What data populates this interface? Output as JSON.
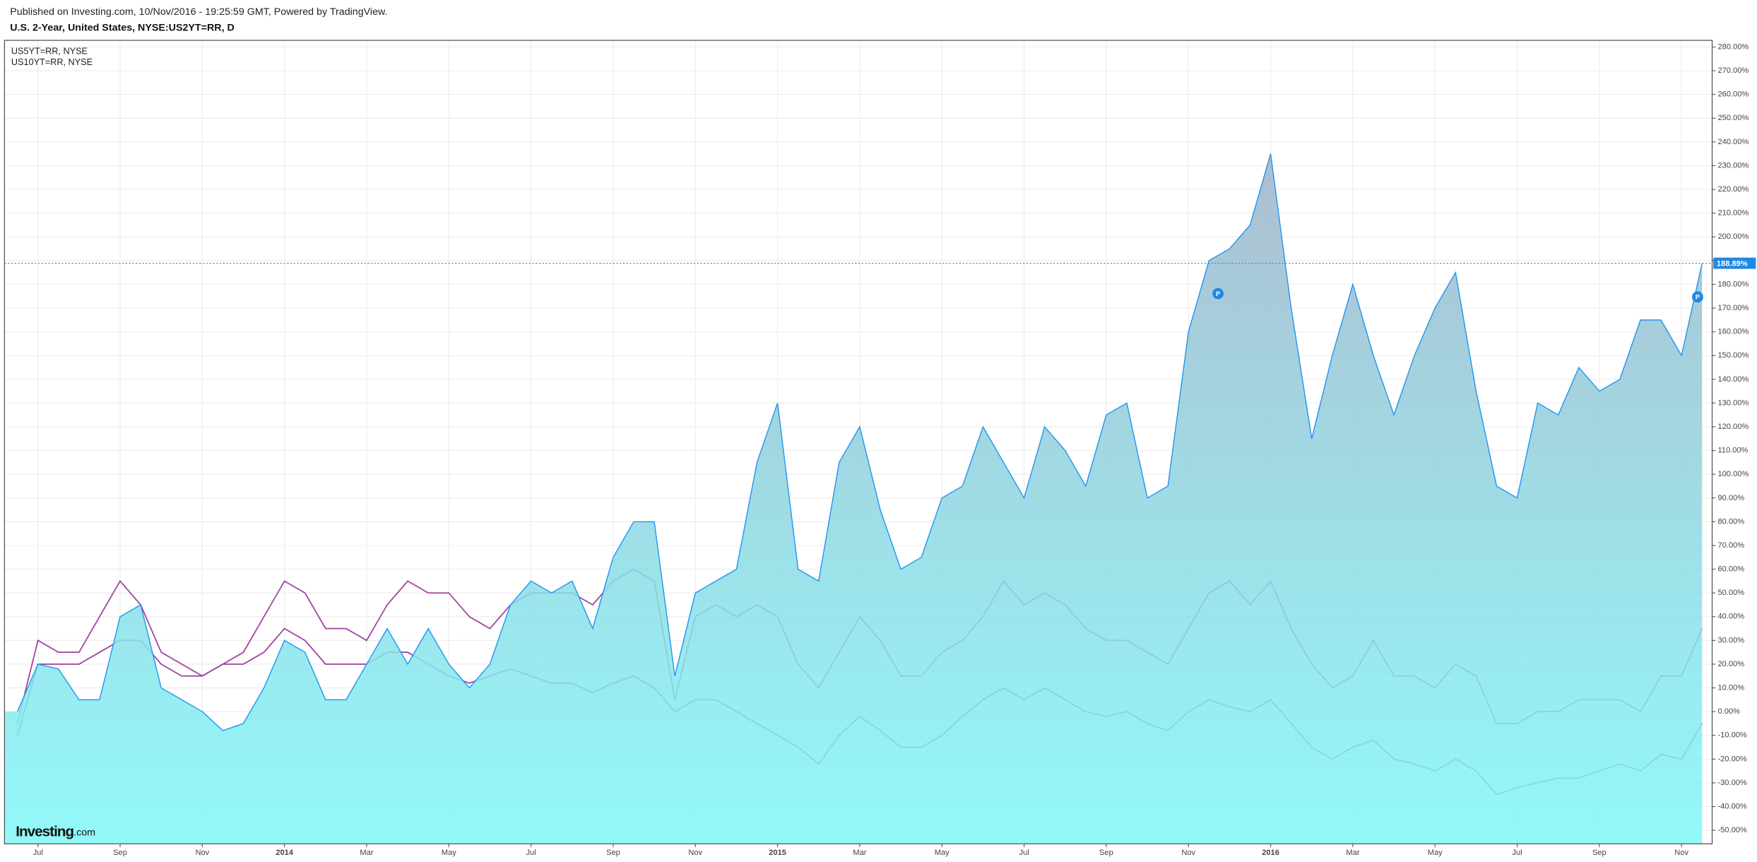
{
  "chart_data": {
    "type": "area",
    "source": "Published on Investing.com, 10/Nov/2016 - 19:25:59 GMT, Powered by TradingView.",
    "title": "U.S. 2-Year, United States, NYSE:US2YT=RR, D",
    "logo": {
      "name": "Investing",
      "suffix": ".com"
    },
    "categories": [
      null,
      "Jul",
      null,
      null,
      null,
      "Sep",
      null,
      null,
      null,
      "Nov",
      null,
      null,
      null,
      "2014",
      null,
      null,
      null,
      "Mar",
      null,
      null,
      null,
      "May",
      null,
      null,
      null,
      "Jul",
      null,
      null,
      null,
      "Sep",
      null,
      null,
      null,
      "Nov",
      null,
      null,
      null,
      "2015",
      null,
      null,
      null,
      "Mar",
      null,
      null,
      null,
      "May",
      null,
      null,
      null,
      "Jul",
      null,
      null,
      null,
      "Sep",
      null,
      null,
      null,
      "Nov",
      null,
      null,
      null,
      "2016",
      null,
      null,
      null,
      "Mar",
      null,
      null,
      null,
      "May",
      null,
      null,
      null,
      "Jul",
      null,
      null,
      null,
      "Sep",
      null,
      null,
      null,
      "Nov",
      null
    ],
    "series": [
      {
        "color": "#2196f3",
        "fill": [
          "#9fb3c9",
          "#7ff8f8"
        ],
        "last_label": "188.89%",
        "values": [
          0,
          20,
          18,
          5,
          5,
          40,
          45,
          10,
          5,
          0,
          -8,
          -5,
          10,
          30,
          25,
          5,
          5,
          20,
          35,
          20,
          35,
          20,
          10,
          20,
          45,
          55,
          50,
          55,
          35,
          65,
          80,
          80,
          15,
          50,
          55,
          60,
          105,
          130,
          60,
          55,
          105,
          120,
          85,
          60,
          65,
          90,
          95,
          120,
          105,
          90,
          120,
          110,
          95,
          125,
          130,
          90,
          95,
          160,
          190,
          195,
          205,
          235,
          170,
          115,
          150,
          180,
          150,
          125,
          150,
          170,
          185,
          135,
          95,
          90,
          130,
          125,
          145,
          135,
          140,
          165,
          165,
          150,
          188.89
        ]
      },
      {
        "name": "US5YT=RR, NYSE",
        "color": "#a0409f",
        "values": [
          -5,
          30,
          25,
          25,
          40,
          55,
          45,
          25,
          20,
          15,
          20,
          25,
          40,
          55,
          50,
          35,
          35,
          30,
          45,
          55,
          50,
          50,
          40,
          35,
          45,
          50,
          50,
          50,
          45,
          55,
          60,
          55,
          5,
          40,
          45,
          40,
          45,
          40,
          20,
          10,
          25,
          40,
          30,
          15,
          15,
          25,
          30,
          40,
          55,
          45,
          50,
          45,
          35,
          30,
          30,
          25,
          20,
          35,
          50,
          55,
          45,
          55,
          35,
          20,
          10,
          15,
          30,
          15,
          15,
          10,
          20,
          15,
          -5,
          -5,
          0,
          0,
          5,
          5,
          5,
          0,
          15,
          15,
          35
        ]
      },
      {
        "name": "US10YT=RR, NYSE",
        "color": "#9c3f9c",
        "values": [
          -10,
          20,
          20,
          20,
          25,
          30,
          30,
          20,
          15,
          15,
          20,
          20,
          25,
          35,
          30,
          20,
          20,
          20,
          25,
          25,
          20,
          15,
          12,
          15,
          18,
          15,
          12,
          12,
          8,
          12,
          15,
          10,
          0,
          5,
          5,
          0,
          -5,
          -10,
          -15,
          -22,
          -10,
          -2,
          -8,
          -15,
          -15,
          -10,
          -2,
          5,
          10,
          5,
          10,
          5,
          0,
          -2,
          0,
          -5,
          -8,
          0,
          5,
          2,
          0,
          5,
          -5,
          -15,
          -20,
          -15,
          -12,
          -20,
          -22,
          -25,
          -20,
          -25,
          -35,
          -32,
          -30,
          -28,
          -28,
          -25,
          -22,
          -25,
          -18,
          -20,
          -5
        ]
      }
    ],
    "ylim": [
      -55.7,
      282.8
    ],
    "yticks": [
      {
        "value": -50,
        "label": "-50.00%"
      },
      {
        "value": -40,
        "label": "-40.00%"
      },
      {
        "value": -30,
        "label": "-30.00%"
      },
      {
        "value": -20,
        "label": "-20.00%"
      },
      {
        "value": -10,
        "label": "-10.00%"
      },
      {
        "value": 0,
        "label": "0.00%"
      },
      {
        "value": 10,
        "label": "10.00%"
      },
      {
        "value": 20,
        "label": "20.00%"
      },
      {
        "value": 30,
        "label": "30.00%"
      },
      {
        "value": 40,
        "label": "40.00%"
      },
      {
        "value": 50,
        "label": "50.00%"
      },
      {
        "value": 60,
        "label": "60.00%"
      },
      {
        "value": 70,
        "label": "70.00%"
      },
      {
        "value": 80,
        "label": "80.00%"
      },
      {
        "value": 90,
        "label": "90.00%"
      },
      {
        "value": 100,
        "label": "100.00%"
      },
      {
        "value": 110,
        "label": "110.00%"
      },
      {
        "value": 120,
        "label": "120.00%"
      },
      {
        "value": 130,
        "label": "130.00%"
      },
      {
        "value": 140,
        "label": "140.00%"
      },
      {
        "value": 150,
        "label": "150.00%"
      },
      {
        "value": 160,
        "label": "160.00%"
      },
      {
        "value": 170,
        "label": "170.00%"
      },
      {
        "value": 180,
        "label": "180.00%"
      },
      {
        "value": 190,
        "label": "190.00%"
      },
      {
        "value": 200,
        "label": "200.00%"
      },
      {
        "value": 210,
        "label": "210.00%"
      },
      {
        "value": 220,
        "label": "220.00%"
      },
      {
        "value": 230,
        "label": "230.00%"
      },
      {
        "value": 240,
        "label": "240.00%"
      },
      {
        "value": 250,
        "label": "250.00%"
      },
      {
        "value": 260,
        "label": "260.00%"
      },
      {
        "value": 270,
        "label": "270.00%"
      },
      {
        "value": 280,
        "label": "280.00%"
      }
    ],
    "grid": true
  }
}
